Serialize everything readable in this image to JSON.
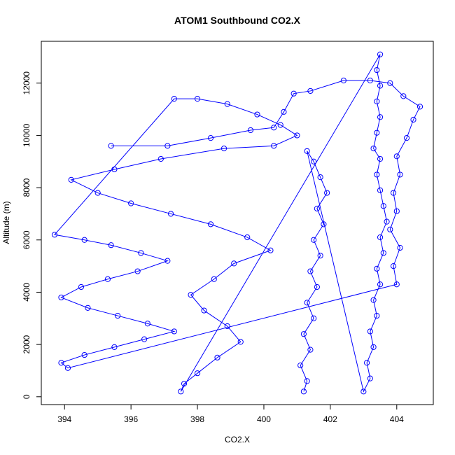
{
  "chart_data": {
    "type": "scatter",
    "title": "ATOM1 Southbound CO2.X",
    "xlabel": "CO2.X",
    "ylabel": "Altitude (m)",
    "xlim": [
      393.3,
      405.1
    ],
    "ylim": [
      -300,
      13600
    ],
    "x_ticks": [
      394,
      396,
      398,
      400,
      402,
      404
    ],
    "y_ticks": [
      0,
      2000,
      4000,
      6000,
      8000,
      10000,
      12000
    ],
    "plot_style": "points and connecting lines (R type 'b'), open circle markers",
    "series_color": "#0000ff",
    "grid": false,
    "legend": "none",
    "series": [
      {
        "points": [
          [
            401.2,
            200
          ],
          [
            401.3,
            600
          ],
          [
            401.1,
            1200
          ],
          [
            401.4,
            1800
          ],
          [
            401.2,
            2400
          ],
          [
            401.5,
            3000
          ],
          [
            401.3,
            3600
          ],
          [
            401.6,
            4200
          ],
          [
            401.4,
            4800
          ],
          [
            401.7,
            5400
          ],
          [
            401.5,
            6000
          ],
          [
            401.8,
            6600
          ],
          [
            401.6,
            7200
          ],
          [
            401.9,
            7800
          ],
          [
            401.7,
            8400
          ],
          [
            401.5,
            9000
          ],
          [
            401.3,
            9400
          ],
          [
            403.0,
            200
          ],
          [
            403.2,
            700
          ],
          [
            403.1,
            1300
          ],
          [
            403.3,
            1900
          ],
          [
            403.2,
            2500
          ],
          [
            403.4,
            3100
          ],
          [
            403.3,
            3700
          ],
          [
            403.5,
            4300
          ],
          [
            403.4,
            4900
          ],
          [
            403.6,
            5500
          ],
          [
            403.5,
            6100
          ],
          [
            403.7,
            6700
          ],
          [
            403.6,
            7300
          ],
          [
            403.5,
            7900
          ],
          [
            403.4,
            8500
          ],
          [
            403.5,
            9100
          ],
          [
            403.3,
            9500
          ],
          [
            403.4,
            10100
          ],
          [
            403.5,
            10700
          ],
          [
            403.4,
            11300
          ],
          [
            403.5,
            11900
          ],
          [
            403.4,
            12500
          ],
          [
            403.5,
            13100
          ],
          [
            397.5,
            200
          ],
          [
            397.6,
            500
          ],
          [
            398.0,
            900
          ],
          [
            398.6,
            1500
          ],
          [
            399.3,
            2100
          ],
          [
            398.9,
            2700
          ],
          [
            398.2,
            3300
          ],
          [
            397.8,
            3900
          ],
          [
            398.5,
            4500
          ],
          [
            399.1,
            5100
          ],
          [
            400.2,
            5600
          ],
          [
            399.5,
            6100
          ],
          [
            398.4,
            6600
          ],
          [
            397.2,
            7000
          ],
          [
            396.0,
            7400
          ],
          [
            395.0,
            7800
          ],
          [
            394.2,
            8300
          ],
          [
            395.5,
            8700
          ],
          [
            396.9,
            9100
          ],
          [
            398.8,
            9500
          ],
          [
            400.3,
            9600
          ],
          [
            401.0,
            10000
          ],
          [
            400.5,
            10400
          ],
          [
            399.8,
            10800
          ],
          [
            398.9,
            11200
          ],
          [
            398.0,
            11400
          ],
          [
            397.3,
            11400
          ],
          [
            393.7,
            6200
          ],
          [
            394.6,
            6000
          ],
          [
            395.4,
            5800
          ],
          [
            396.3,
            5500
          ],
          [
            397.1,
            5200
          ],
          [
            396.2,
            4800
          ],
          [
            395.3,
            4500
          ],
          [
            394.5,
            4200
          ],
          [
            393.9,
            3800
          ],
          [
            394.7,
            3400
          ],
          [
            395.6,
            3100
          ],
          [
            396.5,
            2800
          ],
          [
            397.3,
            2500
          ],
          [
            396.4,
            2200
          ],
          [
            395.5,
            1900
          ],
          [
            394.6,
            1600
          ],
          [
            393.9,
            1300
          ],
          [
            394.1,
            1100
          ],
          [
            404.0,
            4300
          ],
          [
            403.9,
            5000
          ],
          [
            404.1,
            5700
          ],
          [
            403.8,
            6400
          ],
          [
            404.0,
            7100
          ],
          [
            403.9,
            7800
          ],
          [
            404.1,
            8500
          ],
          [
            404.0,
            9200
          ],
          [
            404.3,
            9900
          ],
          [
            404.5,
            10600
          ],
          [
            404.7,
            11100
          ],
          [
            404.2,
            11500
          ],
          [
            403.8,
            12000
          ],
          [
            403.2,
            12100
          ],
          [
            402.4,
            12100
          ],
          [
            401.4,
            11700
          ],
          [
            400.9,
            11600
          ],
          [
            400.6,
            10900
          ],
          [
            400.3,
            10300
          ],
          [
            399.6,
            10200
          ],
          [
            398.4,
            9900
          ],
          [
            397.1,
            9600
          ],
          [
            395.4,
            9600
          ]
        ]
      }
    ]
  }
}
